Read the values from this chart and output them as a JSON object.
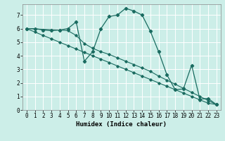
{
  "xlabel": "Humidex (Indice chaleur)",
  "background_color": "#cceee8",
  "grid_color": "#b0ddd8",
  "line_color": "#1a6b60",
  "xlim": [
    -0.5,
    23.5
  ],
  "ylim": [
    0,
    7.8
  ],
  "xticks": [
    0,
    1,
    2,
    3,
    4,
    5,
    6,
    7,
    8,
    9,
    10,
    11,
    12,
    13,
    14,
    15,
    16,
    17,
    18,
    19,
    20,
    21,
    22,
    23
  ],
  "yticks": [
    0,
    1,
    2,
    3,
    4,
    5,
    6,
    7
  ],
  "series1_x": [
    0,
    1,
    2,
    3,
    4,
    5,
    6,
    7,
    8,
    9,
    10,
    11,
    12,
    13,
    14,
    15,
    16,
    17,
    18,
    19,
    20,
    21,
    22,
    23
  ],
  "series1_y": [
    6.0,
    6.0,
    5.9,
    5.85,
    5.9,
    6.0,
    6.5,
    3.6,
    4.3,
    6.0,
    6.9,
    7.0,
    7.5,
    7.3,
    7.0,
    5.8,
    4.3,
    2.6,
    1.5,
    1.55,
    3.3,
    0.8,
    0.85,
    0.4
  ],
  "series2_x": [
    0,
    1,
    2,
    3,
    4,
    5,
    6,
    7,
    8,
    9,
    10,
    11,
    12,
    13,
    14,
    15,
    16,
    17,
    18,
    19,
    20,
    21,
    22,
    23
  ],
  "series2_y": [
    6.0,
    5.75,
    5.5,
    5.25,
    5.0,
    4.75,
    4.5,
    4.25,
    4.0,
    3.75,
    3.5,
    3.25,
    3.0,
    2.75,
    2.5,
    2.25,
    2.0,
    1.75,
    1.5,
    1.25,
    1.0,
    0.75,
    0.5,
    0.4
  ],
  "series3_x": [
    0,
    4,
    5,
    6,
    7,
    8,
    9,
    10,
    11,
    12,
    13,
    14,
    15,
    16,
    17,
    18,
    19,
    20,
    21,
    22,
    23
  ],
  "series3_y": [
    6.0,
    5.9,
    5.85,
    5.5,
    4.9,
    4.55,
    4.3,
    4.1,
    3.85,
    3.6,
    3.35,
    3.1,
    2.85,
    2.5,
    2.2,
    1.9,
    1.6,
    1.3,
    1.0,
    0.7,
    0.4
  ]
}
